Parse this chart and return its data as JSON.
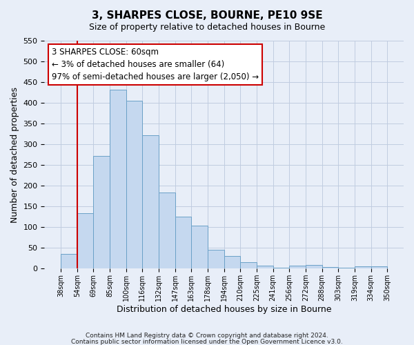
{
  "title": "3, SHARPES CLOSE, BOURNE, PE10 9SE",
  "subtitle": "Size of property relative to detached houses in Bourne",
  "xlabel": "Distribution of detached houses by size in Bourne",
  "ylabel": "Number of detached properties",
  "bar_labels": [
    "38sqm",
    "54sqm",
    "69sqm",
    "85sqm",
    "100sqm",
    "116sqm",
    "132sqm",
    "147sqm",
    "163sqm",
    "178sqm",
    "194sqm",
    "210sqm",
    "225sqm",
    "241sqm",
    "256sqm",
    "272sqm",
    "288sqm",
    "303sqm",
    "319sqm",
    "334sqm",
    "350sqm"
  ],
  "bar_values": [
    35,
    133,
    272,
    432,
    405,
    322,
    184,
    125,
    103,
    46,
    30,
    15,
    7,
    3,
    7,
    9,
    4,
    3,
    5,
    5
  ],
  "bar_color": "#c5d8ef",
  "bar_edge_color": "#6aa0c7",
  "vline_x": 1,
  "vline_color": "#cc0000",
  "annotation_text": "3 SHARPES CLOSE: 60sqm\n← 3% of detached houses are smaller (64)\n97% of semi-detached houses are larger (2,050) →",
  "annotation_box_facecolor": "#ffffff",
  "annotation_box_edgecolor": "#cc0000",
  "ylim": [
    0,
    550
  ],
  "yticks": [
    0,
    50,
    100,
    150,
    200,
    250,
    300,
    350,
    400,
    450,
    500,
    550
  ],
  "footer1": "Contains HM Land Registry data © Crown copyright and database right 2024.",
  "footer2": "Contains public sector information licensed under the Open Government Licence v3.0.",
  "background_color": "#e8eef8",
  "grid_color": "#c0cce0"
}
